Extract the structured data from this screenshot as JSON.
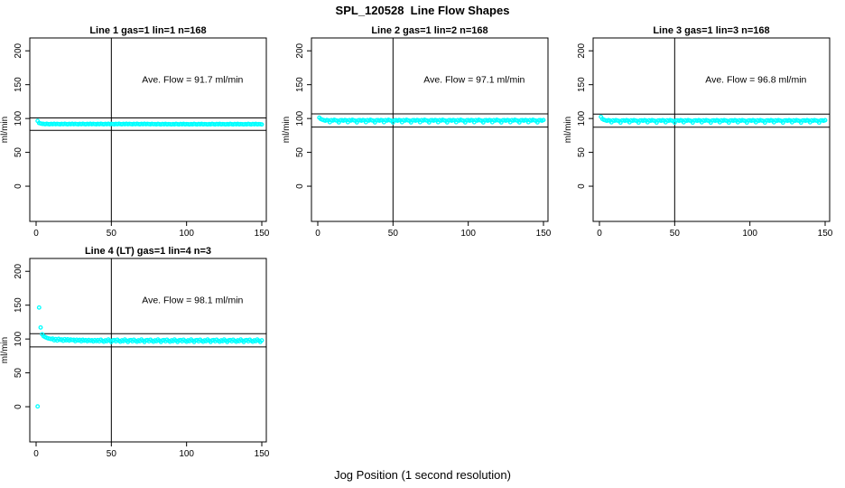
{
  "title": "SPL_120528  Line Flow Shapes",
  "xlabel_bottom": "Jog Position (1 second resolution)",
  "colors": {
    "point": "#00ffff",
    "axis": "#000000",
    "background": "#ffffff"
  },
  "chart_data": [
    {
      "type": "scatter",
      "title": "Line 1 gas=1 lin=1 n=168",
      "annotation": "Ave. Flow =  91.7  ml/min",
      "ave_flow": 91.7,
      "ylabel": "ml/min",
      "xticks": [
        0,
        50,
        100,
        150
      ],
      "yticks": [
        0,
        50,
        100,
        150,
        200
      ],
      "xlim": [
        -4.2,
        153
      ],
      "ylim": [
        -52,
        219
      ],
      "vline_x": 50,
      "hlines": [
        100.9,
        82.5
      ],
      "x_start": 1,
      "x_step": 1,
      "y": [
        96.5,
        93.4,
        92.6,
        92.2,
        92.0,
        91.6,
        92.2,
        91.8,
        91.5,
        92.1,
        91.7,
        92.3,
        91.6,
        92.0,
        91.8,
        91.5,
        92.0,
        91.6,
        92.2,
        91.8,
        91.5,
        92.1,
        91.7,
        92.3,
        91.6,
        92.0,
        91.8,
        91.5,
        92.0,
        91.6,
        92.2,
        91.8,
        91.5,
        92.1,
        91.7,
        92.3,
        91.6,
        92.0,
        91.8,
        91.5,
        92.0,
        91.6,
        92.2,
        91.8,
        91.5,
        92.1,
        91.7,
        92.3,
        91.6,
        92.0,
        91.8,
        91.5,
        92.0,
        91.6,
        92.2,
        91.8,
        91.5,
        92.1,
        91.7,
        92.3,
        91.6,
        92.0,
        91.8,
        91.5,
        92.0,
        91.6,
        92.2,
        91.8,
        91.5,
        92.1,
        91.7,
        92.3,
        91.6,
        92.0,
        91.8,
        91.5,
        92.0,
        91.6,
        91.8,
        91.4,
        92.0,
        91.6,
        91.3,
        91.9,
        91.5,
        92.1,
        91.4,
        91.8,
        91.6,
        91.3,
        91.8,
        91.4,
        92.0,
        91.6,
        91.3,
        91.9,
        91.5,
        92.1,
        91.4,
        91.8,
        91.6,
        91.3,
        91.8,
        91.4,
        92.0,
        91.6,
        91.3,
        91.9,
        91.5,
        92.1,
        91.4,
        91.8,
        91.6,
        91.3,
        91.8,
        91.4,
        92.0,
        91.6,
        91.3,
        91.9,
        91.5,
        92.1,
        91.4,
        91.8,
        91.6,
        91.3,
        91.8,
        91.4,
        92.0,
        91.6,
        91.3,
        91.9,
        91.5,
        92.1,
        91.4,
        91.8,
        91.6,
        91.3,
        91.8,
        91.4,
        92.0,
        91.6,
        91.3,
        91.9,
        91.5,
        92.1,
        91.4,
        91.8,
        91.6,
        91.3
      ]
    },
    {
      "type": "scatter",
      "title": "Line 2 gas=1 lin=2 n=168",
      "annotation": "Ave. Flow =  97.1  ml/min",
      "ave_flow": 97.1,
      "ylabel": "ml/min",
      "xticks": [
        0,
        50,
        100,
        150
      ],
      "yticks": [
        0,
        50,
        100,
        150,
        200
      ],
      "xlim": [
        -4.2,
        153
      ],
      "ylim": [
        -52,
        219
      ],
      "vline_x": 50,
      "hlines": [
        106.8,
        87.4
      ],
      "x_start": 1,
      "x_step": 1,
      "y": [
        101.2,
        99.2,
        98.3,
        97.5,
        96.9,
        97.8,
        97.2,
        94.6,
        97.6,
        97.0,
        98.0,
        97.3,
        96.7,
        94.3,
        97.4,
        97.5,
        96.9,
        97.8,
        97.2,
        94.6,
        97.6,
        97.0,
        98.0,
        97.3,
        96.7,
        94.3,
        97.4,
        97.5,
        96.9,
        97.8,
        97.2,
        94.6,
        97.6,
        97.0,
        98.0,
        97.3,
        96.7,
        94.3,
        97.4,
        97.5,
        96.9,
        97.8,
        97.2,
        94.6,
        97.6,
        97.0,
        98.0,
        97.3,
        96.7,
        94.3,
        97.4,
        97.5,
        96.9,
        97.8,
        97.2,
        94.6,
        97.6,
        97.0,
        98.0,
        97.3,
        96.7,
        94.3,
        97.4,
        97.5,
        96.9,
        97.8,
        97.2,
        94.6,
        97.6,
        97.0,
        98.0,
        97.3,
        96.7,
        94.3,
        97.4,
        97.5,
        96.9,
        97.8,
        97.2,
        94.6,
        97.6,
        97.0,
        98.0,
        97.3,
        96.7,
        94.3,
        97.4,
        97.5,
        96.9,
        97.8,
        97.2,
        94.6,
        97.6,
        97.0,
        98.0,
        97.3,
        96.7,
        94.3,
        97.4,
        97.5,
        96.9,
        97.8,
        97.2,
        94.6,
        97.6,
        97.0,
        98.0,
        97.3,
        96.7,
        94.3,
        97.4,
        97.5,
        96.9,
        97.8,
        97.2,
        94.6,
        97.6,
        97.0,
        98.0,
        97.3,
        96.7,
        94.3,
        97.4,
        97.5,
        96.9,
        97.8,
        97.2,
        94.6,
        97.6,
        97.0,
        98.0,
        97.3,
        96.7,
        94.3,
        97.4,
        97.5,
        96.9,
        97.8,
        97.2,
        94.6,
        97.6,
        97.0,
        98.0,
        97.3,
        96.7,
        94.3,
        97.4,
        97.5,
        96.9,
        97.8
      ]
    },
    {
      "type": "scatter",
      "title": "Line 3 gas=1 lin=3 n=168",
      "annotation": "Ave. Flow =  96.8  ml/min",
      "ave_flow": 96.8,
      "ylabel": "ml/min",
      "xticks": [
        0,
        50,
        100,
        150
      ],
      "yticks": [
        0,
        50,
        100,
        150,
        200
      ],
      "xlim": [
        -4.2,
        153
      ],
      "ylim": [
        -52,
        219
      ],
      "vline_x": 50,
      "hlines": [
        106.5,
        87.1
      ],
      "x_start": 1,
      "x_step": 1,
      "y": [
        102.5,
        99.3,
        98.0,
        97.2,
        96.6,
        97.5,
        96.9,
        94.4,
        97.3,
        96.7,
        97.7,
        97.0,
        96.4,
        94.1,
        97.1,
        97.2,
        96.6,
        97.5,
        96.9,
        94.4,
        97.3,
        96.7,
        97.7,
        97.0,
        96.4,
        94.1,
        97.1,
        97.2,
        96.6,
        97.5,
        96.9,
        94.4,
        97.3,
        96.7,
        97.7,
        97.0,
        96.4,
        94.1,
        97.1,
        97.2,
        96.6,
        97.5,
        96.9,
        94.4,
        97.3,
        96.7,
        97.7,
        97.0,
        96.4,
        94.1,
        97.1,
        97.2,
        96.6,
        97.5,
        96.9,
        94.4,
        97.3,
        96.7,
        97.7,
        97.0,
        96.4,
        94.1,
        97.1,
        97.2,
        96.6,
        97.5,
        96.9,
        94.4,
        97.3,
        96.7,
        97.7,
        97.0,
        96.4,
        94.1,
        97.1,
        97.2,
        96.6,
        97.5,
        96.9,
        94.4,
        97.3,
        96.7,
        97.7,
        97.0,
        96.4,
        94.1,
        97.1,
        97.2,
        96.6,
        97.5,
        96.9,
        94.4,
        97.3,
        96.7,
        97.7,
        97.0,
        96.4,
        94.1,
        97.1,
        97.2,
        96.6,
        97.5,
        96.9,
        94.4,
        97.3,
        96.7,
        97.7,
        97.0,
        96.4,
        94.1,
        97.1,
        97.2,
        96.6,
        97.5,
        96.9,
        94.4,
        97.3,
        96.7,
        97.7,
        97.0,
        96.4,
        94.1,
        97.1,
        97.2,
        96.6,
        97.5,
        96.9,
        94.4,
        97.3,
        96.7,
        97.7,
        97.0,
        96.4,
        94.1,
        97.1,
        97.2,
        96.6,
        97.5,
        96.9,
        94.4,
        97.3,
        96.7,
        97.7,
        97.0,
        96.4,
        94.1,
        97.1,
        97.2,
        96.6,
        97.5
      ]
    },
    {
      "type": "scatter",
      "title": "Line 4 (LT) gas=1 lin=4 n=3",
      "annotation": "Ave. Flow =  98.1  ml/min",
      "ave_flow": 98.1,
      "ylabel": "ml/min",
      "xticks": [
        0,
        50,
        100,
        150
      ],
      "yticks": [
        0,
        50,
        100,
        150,
        200
      ],
      "xlim": [
        -4.2,
        153
      ],
      "ylim": [
        -52,
        219
      ],
      "vline_x": 50,
      "hlines": [
        107.9,
        88.3
      ],
      "x_start": 1,
      "x_step": 1,
      "y": [
        0.5,
        146.5,
        117.0,
        107.0,
        104.2,
        102.8,
        101.8,
        101.0,
        100.4,
        99.9,
        100.6,
        98.2,
        99.9,
        97.8,
        100.2,
        98.6,
        99.4,
        97.4,
        99.8,
        98.0,
        99.5,
        97.6,
        99.2,
        98.4,
        98.9,
        96.9,
        99.0,
        97.8,
        98.7,
        96.7,
        98.9,
        97.5,
        98.4,
        96.8,
        98.6,
        97.2,
        98.2,
        96.5,
        98.4,
        97.0,
        98.4,
        96.6,
        99.0,
        97.2,
        95.9,
        98.1,
        96.8,
        99.3,
        97.6,
        95.7,
        98.0,
        98.4,
        96.6,
        99.0,
        97.2,
        95.9,
        98.1,
        96.8,
        99.3,
        97.6,
        95.7,
        98.0,
        98.4,
        96.6,
        99.0,
        97.2,
        95.9,
        98.1,
        96.8,
        99.3,
        97.6,
        95.7,
        98.0,
        98.4,
        96.6,
        99.0,
        97.2,
        95.9,
        98.1,
        96.8,
        99.3,
        97.6,
        95.7,
        98.0,
        98.4,
        96.6,
        99.0,
        97.2,
        95.9,
        98.1,
        96.8,
        99.3,
        97.6,
        95.7,
        98.0,
        98.4,
        96.6,
        99.0,
        97.2,
        95.9,
        98.1,
        96.8,
        99.3,
        97.6,
        95.7,
        98.0,
        98.4,
        96.6,
        99.0,
        97.2,
        95.9,
        98.1,
        96.8,
        99.3,
        97.6,
        95.7,
        98.0,
        98.4,
        96.6,
        99.0,
        97.2,
        95.9,
        98.1,
        96.8,
        99.3,
        97.6,
        95.7,
        98.0,
        98.4,
        96.6,
        99.0,
        97.2,
        95.9,
        98.1,
        96.8,
        99.3,
        97.6,
        95.7,
        98.0,
        98.4,
        96.6,
        99.0,
        97.2,
        95.9,
        98.1,
        96.8,
        99.3,
        97.6,
        95.7,
        98.0
      ]
    }
  ]
}
